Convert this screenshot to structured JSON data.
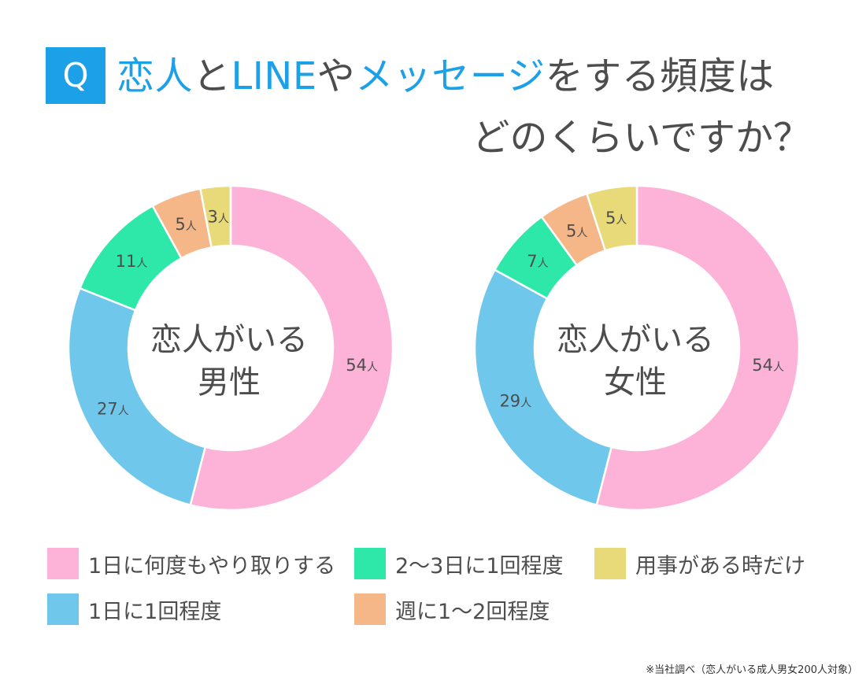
{
  "title": {
    "badge": "Q",
    "line1_part1": "恋人",
    "line1_part2": "と",
    "line1_part3": "LINE",
    "line1_part4": "や",
    "line1_part5": "メッセージ",
    "line1_part6": "をする頻度は",
    "line2": "どのくらいですか？"
  },
  "colors": {
    "accent": "#1ca0e8",
    "daily_multi": "#fdb3d8",
    "daily_once": "#6fc7ec",
    "two_three_days": "#2de8a8",
    "weekly": "#f5b688",
    "when_needed": "#e8da78"
  },
  "chart_data": [
    {
      "type": "pie",
      "center_label_line1": "恋人がいる",
      "center_label_line2": "男性",
      "unit": "人",
      "slices": [
        {
          "category": "1日に何度もやり取りする",
          "value": 54,
          "color": "#fdb3d8"
        },
        {
          "category": "1日に1回程度",
          "value": 27,
          "color": "#6fc7ec"
        },
        {
          "category": "2〜3日に1回程度",
          "value": 11,
          "color": "#2de8a8"
        },
        {
          "category": "週に1〜2回程度",
          "value": 5,
          "color": "#f5b688"
        },
        {
          "category": "用事がある時だけ",
          "value": 3,
          "color": "#e8da78"
        }
      ]
    },
    {
      "type": "pie",
      "center_label_line1": "恋人がいる",
      "center_label_line2": "女性",
      "unit": "人",
      "slices": [
        {
          "category": "1日に何度もやり取りする",
          "value": 54,
          "color": "#fdb3d8"
        },
        {
          "category": "1日に1回程度",
          "value": 29,
          "color": "#6fc7ec"
        },
        {
          "category": "2〜3日に1回程度",
          "value": 7,
          "color": "#2de8a8"
        },
        {
          "category": "週に1〜2回程度",
          "value": 5,
          "color": "#f5b688"
        },
        {
          "category": "用事がある時だけ",
          "value": 5,
          "color": "#e8da78"
        }
      ]
    }
  ],
  "legend": [
    {
      "label": "1日に何度もやり取りする",
      "color": "#fdb3d8"
    },
    {
      "label": "2〜3日に1回程度",
      "color": "#2de8a8"
    },
    {
      "label": "用事がある時だけ",
      "color": "#e8da78"
    },
    {
      "label": "1日に1回程度",
      "color": "#6fc7ec"
    },
    {
      "label": "週に1〜2回程度",
      "color": "#f5b688"
    }
  ],
  "footnote": "※当社調べ（恋人がいる成人男女200人対象）"
}
